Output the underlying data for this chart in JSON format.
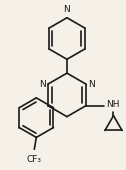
{
  "bg_color": "#f5f0e8",
  "line_color": "#1a1a1a",
  "line_width": 1.2,
  "font_size": 6.5,
  "atom_color": "#1a1a1a",
  "xlim": [
    0,
    126
  ],
  "ylim": [
    0,
    170
  ]
}
